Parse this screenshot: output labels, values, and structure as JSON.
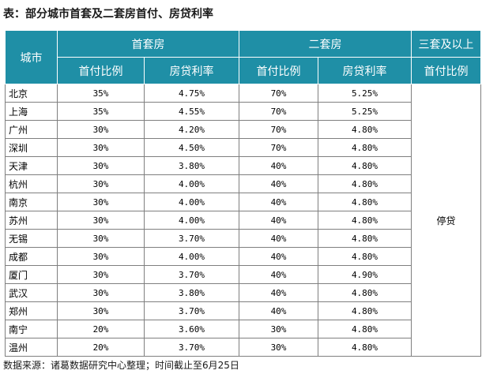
{
  "title": "表：部分城市首套及二套房首付、房贷利率",
  "headers": {
    "city": "城市",
    "first_home": "首套房",
    "second_home": "二套房",
    "third_plus": "三套及以上",
    "down_payment": "首付比例",
    "mortgage_rate": "房贷利率"
  },
  "rows": [
    {
      "city": "北京",
      "first_dp": "35%",
      "first_rate": "4.75%",
      "second_dp": "70%",
      "second_rate": "5.25%"
    },
    {
      "city": "上海",
      "first_dp": "35%",
      "first_rate": "4.55%",
      "second_dp": "70%",
      "second_rate": "5.25%"
    },
    {
      "city": "广州",
      "first_dp": "30%",
      "first_rate": "4.20%",
      "second_dp": "70%",
      "second_rate": "4.80%"
    },
    {
      "city": "深圳",
      "first_dp": "30%",
      "first_rate": "4.50%",
      "second_dp": "70%",
      "second_rate": "4.80%"
    },
    {
      "city": "天津",
      "first_dp": "30%",
      "first_rate": "3.80%",
      "second_dp": "40%",
      "second_rate": "4.80%"
    },
    {
      "city": "杭州",
      "first_dp": "30%",
      "first_rate": "4.00%",
      "second_dp": "40%",
      "second_rate": "4.80%"
    },
    {
      "city": "南京",
      "first_dp": "30%",
      "first_rate": "4.00%",
      "second_dp": "40%",
      "second_rate": "4.80%"
    },
    {
      "city": "苏州",
      "first_dp": "30%",
      "first_rate": "4.00%",
      "second_dp": "40%",
      "second_rate": "4.80%"
    },
    {
      "city": "无锡",
      "first_dp": "30%",
      "first_rate": "3.70%",
      "second_dp": "40%",
      "second_rate": "4.80%"
    },
    {
      "city": "成都",
      "first_dp": "30%",
      "first_rate": "4.00%",
      "second_dp": "40%",
      "second_rate": "4.80%"
    },
    {
      "city": "厦门",
      "first_dp": "30%",
      "first_rate": "3.70%",
      "second_dp": "40%",
      "second_rate": "4.90%"
    },
    {
      "city": "武汉",
      "first_dp": "30%",
      "first_rate": "3.80%",
      "second_dp": "40%",
      "second_rate": "4.80%"
    },
    {
      "city": "郑州",
      "first_dp": "30%",
      "first_rate": "3.70%",
      "second_dp": "40%",
      "second_rate": "4.80%"
    },
    {
      "city": "南宁",
      "first_dp": "20%",
      "first_rate": "3.60%",
      "second_dp": "30%",
      "second_rate": "4.80%"
    },
    {
      "city": "温州",
      "first_dp": "20%",
      "first_rate": "3.70%",
      "second_dp": "30%",
      "second_rate": "4.80%"
    }
  ],
  "third_plus_value": "停贷",
  "source": "数据来源：诸葛数据研究中心整理；时间截止至6月25日"
}
